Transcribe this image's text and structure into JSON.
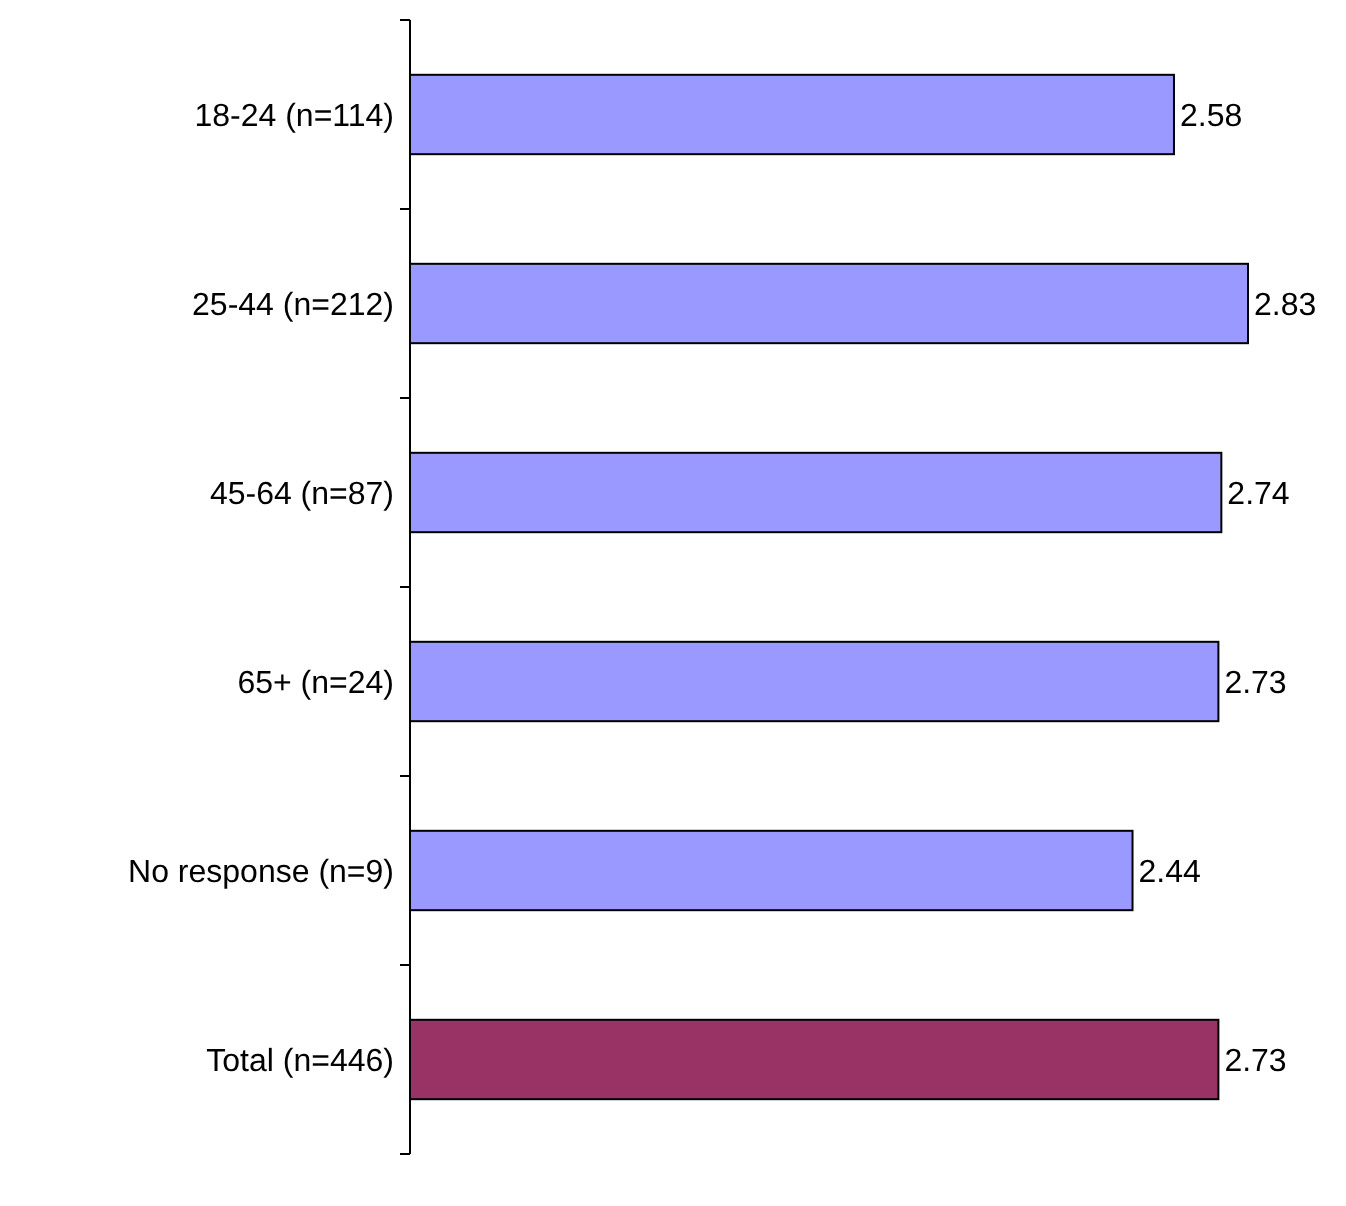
{
  "chart_data": {
    "type": "bar",
    "orientation": "horizontal",
    "categories": [
      "18-24 (n=114)",
      "25-44 (n=212)",
      "45-64 (n=87)",
      "65+ (n=24)",
      "No response (n=9)",
      "Total (n=446)"
    ],
    "values": [
      2.58,
      2.83,
      2.74,
      2.73,
      2.44,
      2.73
    ],
    "colors": [
      "#9999ff",
      "#9999ff",
      "#9999ff",
      "#9999ff",
      "#9999ff",
      "#993366"
    ],
    "data_labels": true,
    "tick_labels": "y"
  }
}
